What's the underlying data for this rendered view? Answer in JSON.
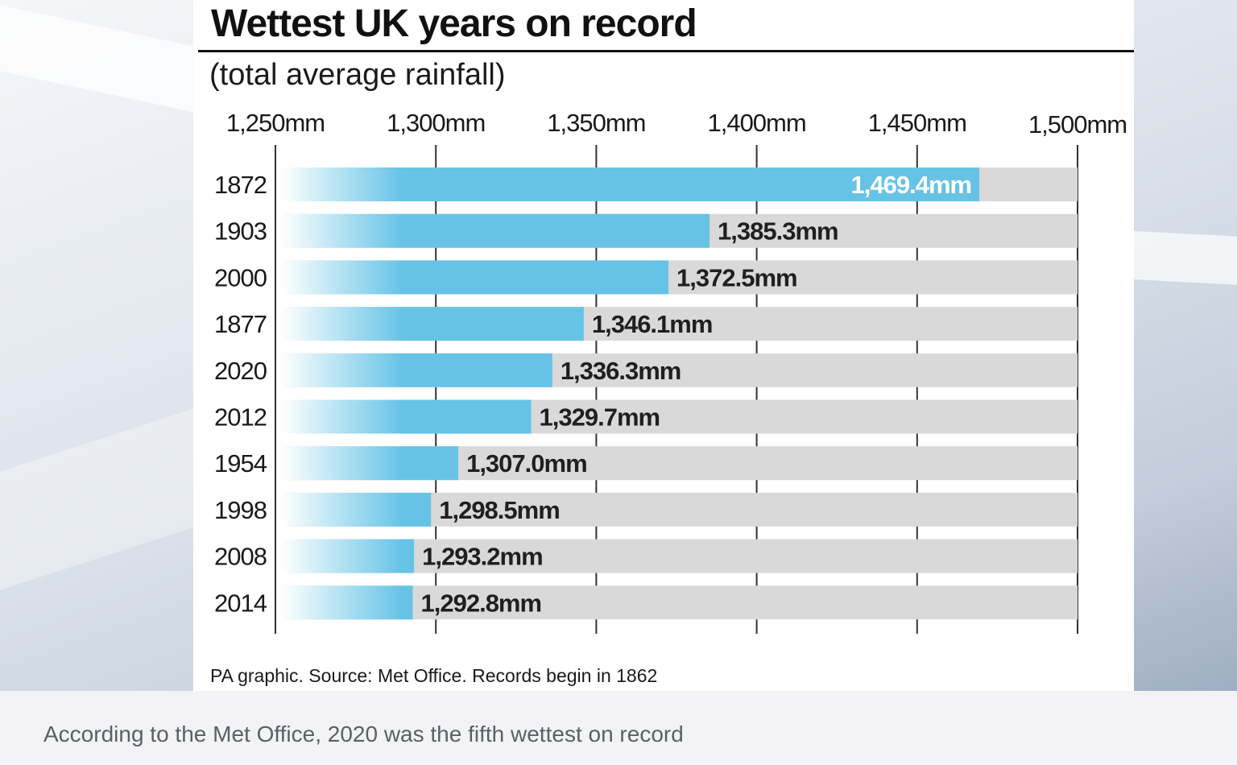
{
  "chart_data": {
    "type": "bar",
    "orientation": "horizontal",
    "title": "Wettest UK years on record",
    "subtitle": "(total average rainfall)",
    "categories": [
      "1872",
      "1903",
      "2000",
      "1877",
      "2020",
      "2012",
      "1954",
      "1998",
      "2008",
      "2014"
    ],
    "values": [
      1469.4,
      1385.3,
      1372.5,
      1346.1,
      1336.3,
      1329.7,
      1307.0,
      1298.5,
      1293.2,
      1292.8
    ],
    "value_labels": [
      "1,469.4mm",
      "1,385.3mm",
      "1,372.5mm",
      "1,346.1mm",
      "1,336.3mm",
      "1,329.7mm",
      "1,307.0mm",
      "1,298.5mm",
      "1,293.2mm",
      "1,292.8mm"
    ],
    "xlim": [
      1250,
      1500
    ],
    "x_ticks": [
      1250,
      1300,
      1350,
      1400,
      1450,
      1500
    ],
    "x_tick_labels": [
      "1,250mm",
      "1,300mm",
      "1,350mm",
      "1,400mm",
      "1,450mm",
      "1,500mm"
    ],
    "xlabel": "",
    "ylabel": "",
    "grid": true,
    "legend": "none",
    "colors": {
      "bar": "#66c3e6",
      "track": "#d9d9d9",
      "highlight_label": "#ffffff",
      "label": "#1f1f1f"
    },
    "source": "PA graphic. Source: Met Office. Records begin in 1862"
  },
  "caption": "According to the Met Office, 2020 was the fifth wettest on record"
}
